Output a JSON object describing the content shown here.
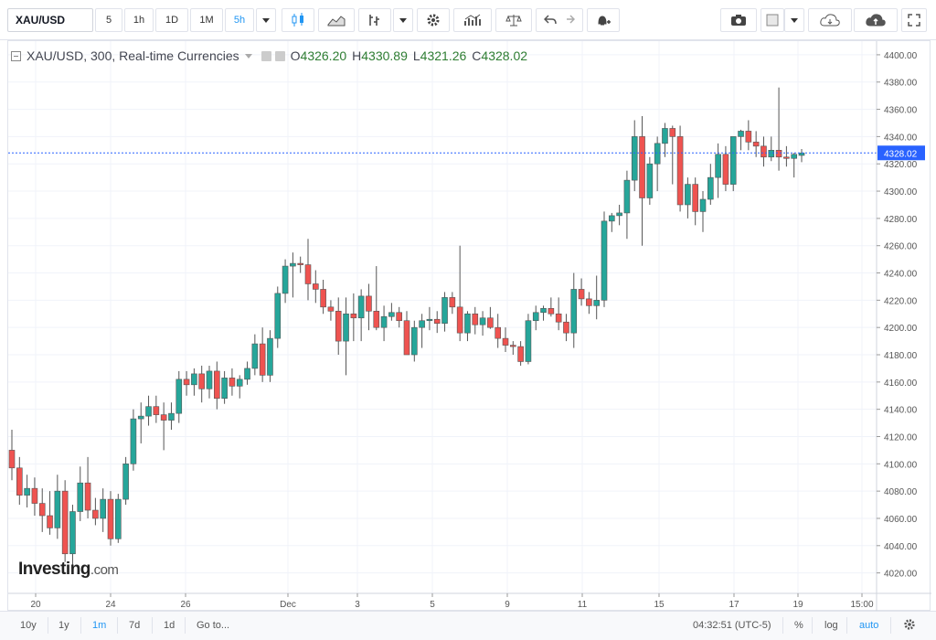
{
  "toolbar": {
    "symbol": "XAU/USD",
    "intervals": [
      "5",
      "1h",
      "1D",
      "1M",
      "5h"
    ],
    "active_interval": "5h"
  },
  "legend": {
    "title": "XAU/USD, 300, Real-time Currencies",
    "o_label": "O",
    "o_value": "4326.20",
    "h_label": "H",
    "h_value": "4330.89",
    "l_label": "L",
    "l_value": "4321.26",
    "c_label": "C",
    "c_value": "4328.02"
  },
  "logo": {
    "main": "Investing",
    "suffix": ".com"
  },
  "bottombar": {
    "ranges": [
      "10y",
      "1y",
      "1m",
      "7d",
      "1d"
    ],
    "active_range": "1m",
    "goto": "Go to...",
    "time": "04:32:51 (UTC-5)",
    "percent": "%",
    "log": "log",
    "auto": "auto"
  },
  "colors": {
    "up": "#26a69a",
    "down": "#ef5350",
    "accent": "#2196f3",
    "price_line": "#2962ff"
  },
  "chart_data": {
    "type": "candlestick",
    "title": "XAU/USD, 300, Real-time Currencies",
    "ylim": [
      4005,
      4410
    ],
    "y_ticks": [
      4020,
      4040,
      4060,
      4080,
      4100,
      4120,
      4140,
      4160,
      4180,
      4200,
      4220,
      4240,
      4260,
      4280,
      4300,
      4320,
      4340,
      4360,
      4380,
      4400
    ],
    "y_tick_labels": [
      "4020.00",
      "4040.00",
      "4060.00",
      "4080.00",
      "4100.00",
      "4120.00",
      "4140.00",
      "4160.00",
      "4180.00",
      "4200.00",
      "4220.00",
      "4240.00",
      "4260.00",
      "4280.00",
      "4300.00",
      "4320.00",
      "4340.00",
      "4360.00",
      "4380.00",
      "4400.00"
    ],
    "current_price": "4328.02",
    "x_labels": [
      "20",
      "24",
      "26",
      "Dec",
      "3",
      "5",
      "9",
      "11",
      "15",
      "17",
      "19",
      "15:00"
    ],
    "candles": [
      [
        4110,
        4125,
        4088,
        4097
      ],
      [
        4097,
        4105,
        4070,
        4077
      ],
      [
        4077,
        4092,
        4068,
        4082
      ],
      [
        4082,
        4090,
        4062,
        4071
      ],
      [
        4071,
        4082,
        4050,
        4062
      ],
      [
        4062,
        4080,
        4048,
        4053
      ],
      [
        4053,
        4092,
        4045,
        4080
      ],
      [
        4080,
        4088,
        4028,
        4034
      ],
      [
        4034,
        4070,
        4024,
        4065
      ],
      [
        4065,
        4098,
        4058,
        4086
      ],
      [
        4086,
        4105,
        4060,
        4066
      ],
      [
        4066,
        4075,
        4055,
        4060
      ],
      [
        4060,
        4082,
        4050,
        4074
      ],
      [
        4074,
        4080,
        4040,
        4045
      ],
      [
        4045,
        4078,
        4042,
        4074
      ],
      [
        4074,
        4105,
        4070,
        4100
      ],
      [
        4100,
        4140,
        4095,
        4133
      ],
      [
        4133,
        4145,
        4115,
        4135
      ],
      [
        4135,
        4150,
        4128,
        4142
      ],
      [
        4142,
        4150,
        4130,
        4136
      ],
      [
        4136,
        4145,
        4110,
        4132
      ],
      [
        4132,
        4145,
        4125,
        4137
      ],
      [
        4137,
        4168,
        4130,
        4162
      ],
      [
        4162,
        4168,
        4150,
        4158
      ],
      [
        4158,
        4170,
        4150,
        4166
      ],
      [
        4166,
        4172,
        4145,
        4155
      ],
      [
        4155,
        4172,
        4148,
        4168
      ],
      [
        4168,
        4175,
        4140,
        4148
      ],
      [
        4148,
        4168,
        4144,
        4163
      ],
      [
        4163,
        4170,
        4150,
        4157
      ],
      [
        4157,
        4165,
        4148,
        4162
      ],
      [
        4162,
        4175,
        4158,
        4170
      ],
      [
        4170,
        4195,
        4165,
        4188
      ],
      [
        4188,
        4200,
        4160,
        4165
      ],
      [
        4165,
        4198,
        4160,
        4192
      ],
      [
        4192,
        4230,
        4185,
        4225
      ],
      [
        4225,
        4250,
        4218,
        4245
      ],
      [
        4245,
        4255,
        4222,
        4247
      ],
      [
        4247,
        4252,
        4240,
        4246
      ],
      [
        4246,
        4265,
        4220,
        4232
      ],
      [
        4232,
        4242,
        4218,
        4228
      ],
      [
        4228,
        4235,
        4210,
        4215
      ],
      [
        4215,
        4220,
        4205,
        4212
      ],
      [
        4212,
        4222,
        4180,
        4190
      ],
      [
        4190,
        4222,
        4165,
        4210
      ],
      [
        4210,
        4225,
        4190,
        4207
      ],
      [
        4207,
        4228,
        4190,
        4223
      ],
      [
        4223,
        4232,
        4198,
        4212
      ],
      [
        4212,
        4245,
        4198,
        4200
      ],
      [
        4200,
        4216,
        4190,
        4208
      ],
      [
        4208,
        4218,
        4205,
        4211
      ],
      [
        4211,
        4215,
        4200,
        4205
      ],
      [
        4205,
        4212,
        4180,
        4180
      ],
      [
        4180,
        4205,
        4175,
        4200
      ],
      [
        4200,
        4210,
        4185,
        4205
      ],
      [
        4205,
        4215,
        4198,
        4206
      ],
      [
        4206,
        4212,
        4196,
        4203
      ],
      [
        4203,
        4226,
        4197,
        4222
      ],
      [
        4222,
        4226,
        4210,
        4215
      ],
      [
        4215,
        4260,
        4190,
        4196
      ],
      [
        4196,
        4212,
        4190,
        4210
      ],
      [
        4210,
        4215,
        4195,
        4202
      ],
      [
        4202,
        4212,
        4194,
        4207
      ],
      [
        4207,
        4215,
        4199,
        4200
      ],
      [
        4200,
        4210,
        4185,
        4192
      ],
      [
        4192,
        4200,
        4182,
        4187
      ],
      [
        4187,
        4190,
        4180,
        4186
      ],
      [
        4186,
        4190,
        4172,
        4175
      ],
      [
        4175,
        4210,
        4173,
        4205
      ],
      [
        4205,
        4216,
        4198,
        4211
      ],
      [
        4211,
        4216,
        4205,
        4214
      ],
      [
        4214,
        4222,
        4208,
        4210
      ],
      [
        4210,
        4222,
        4198,
        4204
      ],
      [
        4204,
        4210,
        4190,
        4196
      ],
      [
        4196,
        4240,
        4185,
        4228
      ],
      [
        4228,
        4236,
        4216,
        4221
      ],
      [
        4221,
        4226,
        4210,
        4216
      ],
      [
        4216,
        4238,
        4206,
        4220
      ],
      [
        4220,
        4285,
        4215,
        4278
      ],
      [
        4278,
        4284,
        4270,
        4282
      ],
      [
        4282,
        4290,
        4275,
        4284
      ],
      [
        4284,
        4315,
        4265,
        4308
      ],
      [
        4308,
        4352,
        4300,
        4340
      ],
      [
        4340,
        4355,
        4260,
        4295
      ],
      [
        4295,
        4325,
        4290,
        4320
      ],
      [
        4320,
        4340,
        4300,
        4335
      ],
      [
        4335,
        4350,
        4325,
        4346
      ],
      [
        4346,
        4348,
        4305,
        4340
      ],
      [
        4340,
        4348,
        4285,
        4290
      ],
      [
        4290,
        4310,
        4280,
        4305
      ],
      [
        4305,
        4310,
        4275,
        4285
      ],
      [
        4285,
        4300,
        4270,
        4294
      ],
      [
        4294,
        4320,
        4290,
        4310
      ],
      [
        4310,
        4335,
        4295,
        4327
      ],
      [
        4327,
        4333,
        4300,
        4305
      ],
      [
        4305,
        4338,
        4300,
        4340
      ],
      [
        4340,
        4345,
        4330,
        4344
      ],
      [
        4344,
        4352,
        4330,
        4336
      ],
      [
        4336,
        4344,
        4325,
        4333
      ],
      [
        4333,
        4340,
        4318,
        4325
      ],
      [
        4325,
        4340,
        4322,
        4330
      ],
      [
        4330,
        4376,
        4315,
        4325
      ],
      [
        4325,
        4333,
        4318,
        4324
      ],
      [
        4324,
        4328,
        4310,
        4327
      ],
      [
        4326.2,
        4330.89,
        4321.26,
        4328.02
      ]
    ]
  }
}
